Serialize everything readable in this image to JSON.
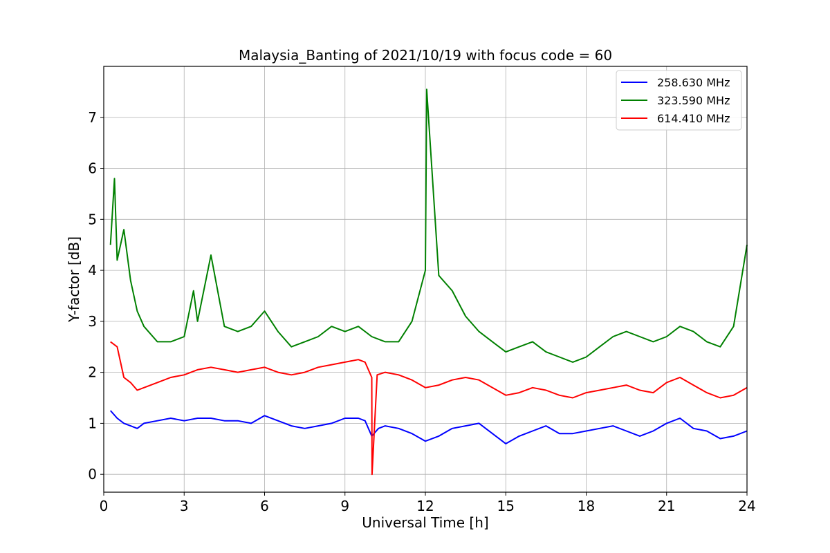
{
  "chart_data": {
    "type": "line",
    "title": "Malaysia_Banting of 2021/10/19 with focus code = 60",
    "xlabel": "Universal Time [h]",
    "ylabel": "Y-factor [dB]",
    "xlim": [
      0,
      24
    ],
    "ylim": [
      -0.35,
      8.0
    ],
    "xticks": [
      0,
      3,
      6,
      9,
      12,
      15,
      18,
      21,
      24
    ],
    "yticks": [
      0,
      1,
      2,
      3,
      4,
      5,
      6,
      7
    ],
    "grid": true,
    "legend_position": "top-right",
    "series": [
      {
        "name": "258.630 MHz",
        "color": "#0000ff",
        "x": [
          0.25,
          0.5,
          0.75,
          1.0,
          1.25,
          1.5,
          2.0,
          2.5,
          3.0,
          3.5,
          4.0,
          4.5,
          5.0,
          5.5,
          6.0,
          6.5,
          7.0,
          7.5,
          8.0,
          8.5,
          9.0,
          9.5,
          9.75,
          10.0,
          10.25,
          10.5,
          11.0,
          11.5,
          12.0,
          12.5,
          13.0,
          13.5,
          14.0,
          14.5,
          15.0,
          15.5,
          16.0,
          16.5,
          17.0,
          17.5,
          18.0,
          18.5,
          19.0,
          19.5,
          20.0,
          20.5,
          21.0,
          21.5,
          22.0,
          22.5,
          23.0,
          23.5,
          24.0
        ],
        "values": [
          1.25,
          1.1,
          1.0,
          0.95,
          0.9,
          1.0,
          1.05,
          1.1,
          1.05,
          1.1,
          1.1,
          1.05,
          1.05,
          1.0,
          1.15,
          1.05,
          0.95,
          0.9,
          0.95,
          1.0,
          1.1,
          1.1,
          1.05,
          0.75,
          0.9,
          0.95,
          0.9,
          0.8,
          0.65,
          0.75,
          0.9,
          0.95,
          1.0,
          0.8,
          0.6,
          0.75,
          0.85,
          0.95,
          0.8,
          0.8,
          0.85,
          0.9,
          0.95,
          0.85,
          0.75,
          0.85,
          1.0,
          1.1,
          0.9,
          0.85,
          0.7,
          0.75,
          0.85
        ]
      },
      {
        "name": "323.590 MHz",
        "color": "#008000",
        "x": [
          0.25,
          0.4,
          0.5,
          0.75,
          1.0,
          1.25,
          1.5,
          2.0,
          2.5,
          3.0,
          3.35,
          3.5,
          4.0,
          4.5,
          5.0,
          5.5,
          6.0,
          6.5,
          7.0,
          7.5,
          8.0,
          8.5,
          9.0,
          9.5,
          10.0,
          10.5,
          11.0,
          11.5,
          12.0,
          12.05,
          12.5,
          13.0,
          13.5,
          14.0,
          14.5,
          15.0,
          15.5,
          16.0,
          16.5,
          17.0,
          17.5,
          18.0,
          18.5,
          19.0,
          19.5,
          20.0,
          20.5,
          21.0,
          21.5,
          22.0,
          22.5,
          23.0,
          23.5,
          24.0
        ],
        "values": [
          4.5,
          5.8,
          4.2,
          4.8,
          3.8,
          3.2,
          2.9,
          2.6,
          2.6,
          2.7,
          3.6,
          3.0,
          4.3,
          2.9,
          2.8,
          2.9,
          3.2,
          2.8,
          2.5,
          2.6,
          2.7,
          2.9,
          2.8,
          2.9,
          2.7,
          2.6,
          2.6,
          3.0,
          4.0,
          7.55,
          3.9,
          3.6,
          3.1,
          2.8,
          2.6,
          2.4,
          2.5,
          2.6,
          2.4,
          2.3,
          2.2,
          2.3,
          2.5,
          2.7,
          2.8,
          2.7,
          2.6,
          2.7,
          2.9,
          2.8,
          2.6,
          2.5,
          2.9,
          4.5
        ]
      },
      {
        "name": "614.410 MHz",
        "color": "#ff0000",
        "x": [
          0.25,
          0.5,
          0.75,
          1.0,
          1.25,
          1.5,
          2.0,
          2.5,
          3.0,
          3.5,
          4.0,
          4.5,
          5.0,
          5.5,
          6.0,
          6.5,
          7.0,
          7.5,
          8.0,
          8.5,
          9.0,
          9.5,
          9.75,
          10.0,
          10.01,
          10.2,
          10.5,
          11.0,
          11.5,
          12.0,
          12.5,
          13.0,
          13.5,
          14.0,
          14.5,
          15.0,
          15.5,
          16.0,
          16.5,
          17.0,
          17.5,
          18.0,
          18.5,
          19.0,
          19.5,
          20.0,
          20.5,
          21.0,
          21.5,
          22.0,
          22.5,
          23.0,
          23.5,
          24.0
        ],
        "values": [
          2.6,
          2.5,
          1.9,
          1.8,
          1.65,
          1.7,
          1.8,
          1.9,
          1.95,
          2.05,
          2.1,
          2.05,
          2.0,
          2.05,
          2.1,
          2.0,
          1.95,
          2.0,
          2.1,
          2.15,
          2.2,
          2.25,
          2.2,
          1.9,
          0.0,
          1.95,
          2.0,
          1.95,
          1.85,
          1.7,
          1.75,
          1.85,
          1.9,
          1.85,
          1.7,
          1.55,
          1.6,
          1.7,
          1.65,
          1.55,
          1.5,
          1.6,
          1.65,
          1.7,
          1.75,
          1.65,
          1.6,
          1.8,
          1.9,
          1.75,
          1.6,
          1.5,
          1.55,
          1.7
        ]
      }
    ]
  }
}
